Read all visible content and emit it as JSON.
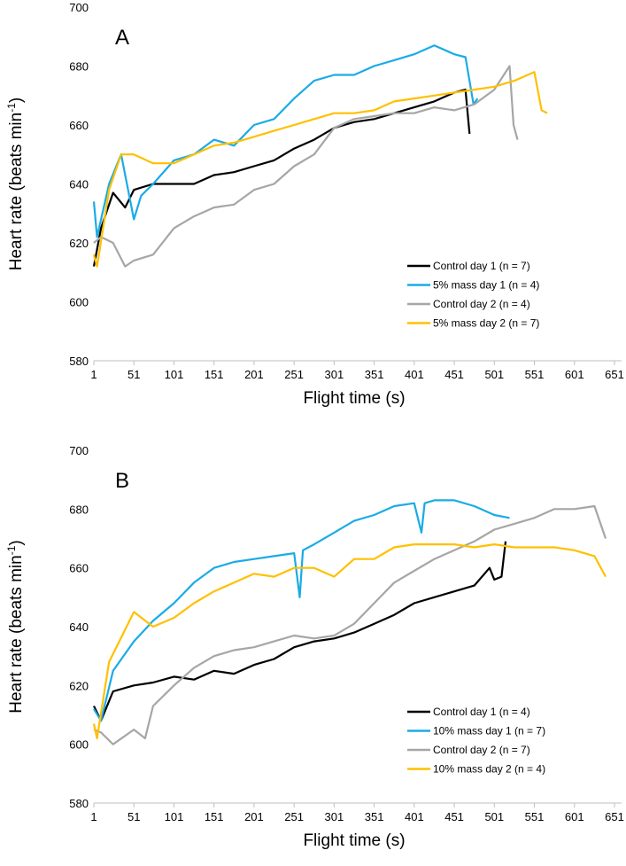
{
  "chart_data": [
    {
      "type": "line",
      "panel_label": "A",
      "xlabel": "Flight time (s)",
      "ylabel": "Heart rate (beats min",
      "ylabel_sup": "-1",
      "ylabel_close": ")",
      "xlim": [
        1,
        651
      ],
      "ylim": [
        580,
        700
      ],
      "xticks": [
        1,
        51,
        101,
        151,
        201,
        251,
        301,
        351,
        401,
        451,
        501,
        551,
        601,
        651
      ],
      "yticks": [
        580,
        600,
        620,
        640,
        660,
        680,
        700
      ],
      "grid": false,
      "legend_position": "center-right",
      "series": [
        {
          "name": "Control day 1 (n = 7)",
          "color": "#000000",
          "x": [
            1,
            10,
            25,
            40,
            51,
            75,
            101,
            126,
            151,
            176,
            201,
            226,
            251,
            276,
            301,
            326,
            351,
            376,
            401,
            426,
            451,
            465,
            470
          ],
          "y": [
            612,
            625,
            637,
            632,
            638,
            640,
            640,
            640,
            643,
            644,
            646,
            648,
            652,
            655,
            659,
            661,
            662,
            664,
            666,
            668,
            671,
            672,
            657
          ]
        },
        {
          "name": "5% mass day 1 (n = 4)",
          "color": "#1AABE6",
          "x": [
            1,
            5,
            20,
            35,
            51,
            60,
            75,
            101,
            126,
            151,
            176,
            201,
            226,
            251,
            276,
            301,
            326,
            351,
            376,
            401,
            426,
            451,
            465,
            475,
            480
          ],
          "y": [
            634,
            622,
            640,
            650,
            628,
            636,
            640,
            648,
            650,
            655,
            653,
            660,
            662,
            669,
            675,
            677,
            677,
            680,
            682,
            684,
            687,
            684,
            683,
            667,
            669
          ]
        },
        {
          "name": "Control day 2 (n = 4)",
          "color": "#A6A6A6",
          "x": [
            1,
            10,
            25,
            40,
            51,
            75,
            101,
            126,
            151,
            176,
            201,
            226,
            251,
            276,
            301,
            326,
            351,
            376,
            401,
            426,
            451,
            476,
            501,
            520,
            525,
            530
          ],
          "y": [
            620,
            622,
            620,
            612,
            614,
            616,
            625,
            629,
            632,
            633,
            638,
            640,
            646,
            650,
            659,
            662,
            663,
            664,
            664,
            666,
            665,
            667,
            672,
            680,
            660,
            655
          ]
        },
        {
          "name": "5% mass day 2 (n = 7)",
          "color": "#FFC000",
          "x": [
            1,
            5,
            20,
            35,
            51,
            75,
            101,
            126,
            151,
            176,
            201,
            226,
            251,
            276,
            301,
            326,
            351,
            376,
            401,
            426,
            451,
            476,
            501,
            526,
            551,
            560,
            567
          ],
          "y": [
            616,
            612,
            638,
            650,
            650,
            647,
            647,
            650,
            653,
            654,
            656,
            658,
            660,
            662,
            664,
            664,
            665,
            668,
            669,
            670,
            671,
            672,
            673,
            675,
            678,
            665,
            664
          ]
        }
      ]
    },
    {
      "type": "line",
      "panel_label": "B",
      "xlabel": "Flight time (s)",
      "ylabel": "Heart rate (beats min",
      "ylabel_sup": "-1",
      "ylabel_close": ")",
      "xlim": [
        1,
        651
      ],
      "ylim": [
        580,
        700
      ],
      "xticks": [
        1,
        51,
        101,
        151,
        201,
        251,
        301,
        351,
        401,
        451,
        501,
        551,
        601,
        651
      ],
      "yticks": [
        580,
        600,
        620,
        640,
        660,
        680,
        700
      ],
      "grid": false,
      "legend_position": "bottom-right",
      "series": [
        {
          "name": "Control day 1 (n = 4)",
          "color": "#000000",
          "x": [
            1,
            10,
            25,
            51,
            75,
            101,
            126,
            151,
            176,
            201,
            226,
            251,
            276,
            301,
            326,
            351,
            376,
            401,
            426,
            451,
            476,
            495,
            501,
            510,
            515
          ],
          "y": [
            613,
            608,
            618,
            620,
            621,
            623,
            622,
            625,
            624,
            627,
            629,
            633,
            635,
            636,
            638,
            641,
            644,
            648,
            650,
            652,
            654,
            660,
            656,
            657,
            669
          ]
        },
        {
          "name": "10% mass day 1 (n = 7)",
          "color": "#1AABE6",
          "x": [
            1,
            10,
            25,
            51,
            75,
            101,
            126,
            151,
            176,
            201,
            226,
            251,
            258,
            262,
            276,
            301,
            326,
            351,
            376,
            401,
            410,
            414,
            426,
            451,
            476,
            501,
            520
          ],
          "y": [
            612,
            608,
            625,
            635,
            642,
            648,
            655,
            660,
            662,
            663,
            664,
            665,
            650,
            666,
            668,
            672,
            676,
            678,
            681,
            682,
            672,
            682,
            683,
            683,
            681,
            678,
            677
          ]
        },
        {
          "name": "Control day 2 (n = 7)",
          "color": "#A6A6A6",
          "x": [
            1,
            10,
            25,
            51,
            65,
            75,
            101,
            126,
            151,
            176,
            201,
            226,
            251,
            276,
            301,
            326,
            351,
            376,
            401,
            426,
            451,
            476,
            501,
            526,
            551,
            576,
            601,
            626,
            640
          ],
          "y": [
            605,
            604,
            600,
            605,
            602,
            613,
            620,
            626,
            630,
            632,
            633,
            635,
            637,
            636,
            637,
            641,
            648,
            655,
            659,
            663,
            666,
            669,
            673,
            675,
            677,
            680,
            680,
            681,
            670
          ]
        },
        {
          "name": "10% mass day 2 (n = 4)",
          "color": "#FFC000",
          "x": [
            1,
            5,
            20,
            51,
            75,
            101,
            126,
            151,
            176,
            201,
            226,
            251,
            276,
            301,
            326,
            351,
            376,
            401,
            426,
            451,
            476,
            501,
            526,
            551,
            576,
            601,
            626,
            640
          ],
          "y": [
            607,
            602,
            628,
            645,
            640,
            643,
            648,
            652,
            655,
            658,
            657,
            660,
            660,
            657,
            663,
            663,
            667,
            668,
            668,
            668,
            667,
            668,
            667,
            667,
            667,
            666,
            664,
            657
          ]
        }
      ]
    }
  ]
}
